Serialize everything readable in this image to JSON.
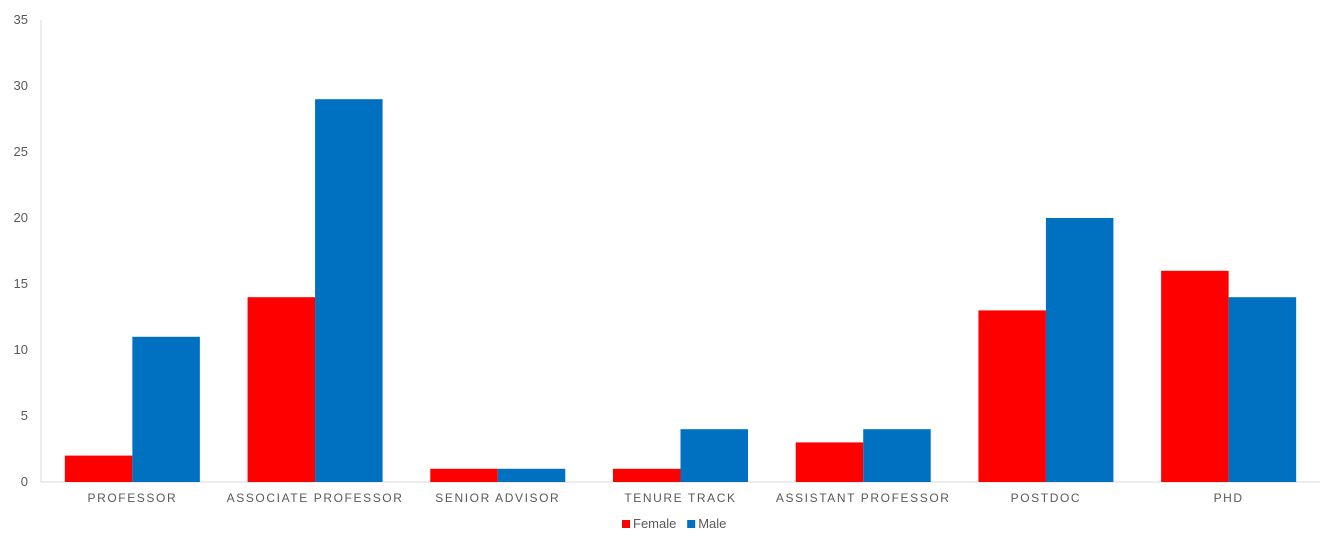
{
  "chart_data": {
    "type": "bar",
    "categories": [
      "PROFESSOR",
      "ASSOCIATE PROFESSOR",
      "SENIOR ADVISOR",
      "TENURE TRACK",
      "ASSISTANT PROFESSOR",
      "POSTDOC",
      "PHD"
    ],
    "series": [
      {
        "name": "Female",
        "color": "#ff0000",
        "values": [
          2,
          14,
          1,
          1,
          3,
          13,
          16
        ]
      },
      {
        "name": "Male",
        "color": "#0070c0",
        "values": [
          11,
          29,
          1,
          4,
          4,
          20,
          14
        ]
      }
    ],
    "title": "",
    "xlabel": "",
    "ylabel": "",
    "ylim": [
      0,
      35
    ],
    "yticks": [
      0,
      5,
      10,
      15,
      20,
      25,
      30,
      35
    ],
    "grid": false,
    "legend": "bottom"
  }
}
